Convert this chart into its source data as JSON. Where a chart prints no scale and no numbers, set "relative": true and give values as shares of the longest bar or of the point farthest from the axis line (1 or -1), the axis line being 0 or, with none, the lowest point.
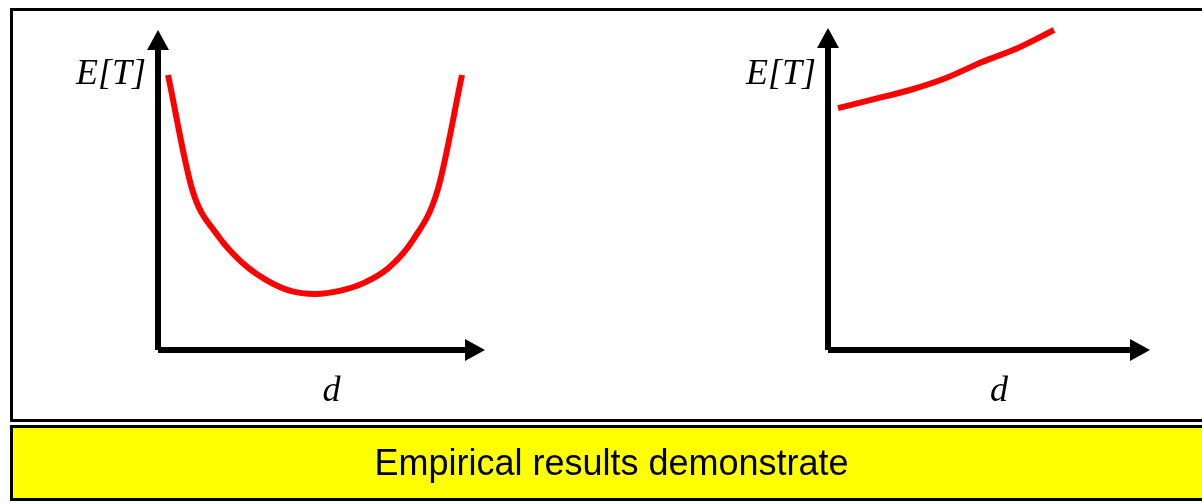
{
  "chart_data": [
    {
      "type": "line",
      "relative": true,
      "xlabel": "d",
      "ylabel": "E[T]",
      "marker": "none",
      "color": "#ff0000",
      "categories": [
        null,
        null,
        null,
        null,
        null,
        null,
        null,
        null,
        null,
        null,
        null,
        null,
        null
      ],
      "values": [
        1.0,
        0.58,
        0.42,
        0.32,
        0.255,
        0.215,
        0.204,
        0.215,
        0.244,
        0.298,
        0.4,
        0.58,
        1.0
      ]
    },
    {
      "type": "line",
      "relative": true,
      "xlabel": "d",
      "ylabel": "E[T]",
      "marker": "none",
      "color": "#ff0000",
      "categories": [
        null,
        null,
        null,
        null,
        null,
        null,
        null,
        null,
        null,
        null
      ],
      "values": [
        0.756,
        0.784,
        0.8125,
        0.85,
        0.9,
        0.944,
        1.0,
        null,
        null,
        null
      ]
    },
    {
      "type": "other",
      "title": "Empirical results demonstrate"
    }
  ]
}
